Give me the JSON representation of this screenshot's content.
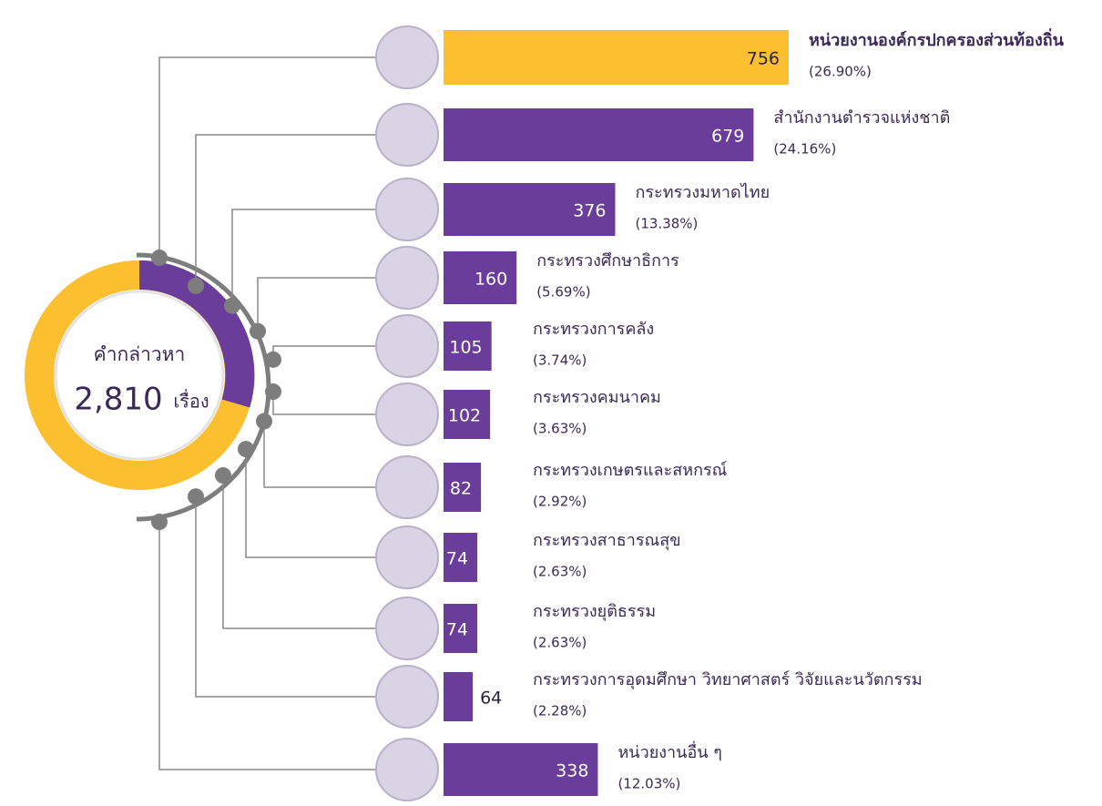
{
  "chart_data": {
    "type": "bar",
    "orientation": "horizontal",
    "center_label": "คำกล่าวหา",
    "total": {
      "value": 2810,
      "label": "2,810"
    },
    "total_unit": "เรื่อง",
    "categories": [
      "หน่วยงานองค์กรปกครองส่วนท้องถิ่น",
      "สำนักงานตำรวจแห่งชาติ",
      "กระทรวงมหาดไทย",
      "กระทรวงศึกษาธิการ",
      "กระทรวงการคลัง",
      "กระทรวงคมนาคม",
      "กระทรวงเกษตรและสหกรณ์",
      "กระทรวงสาธารณสุข",
      "กระทรวงยุติธรรม",
      "กระทรวงการอุดมศึกษา วิทยาศาสตร์ วิจัยและนวัตกรรม",
      "หน่วยงานอื่น ๆ"
    ],
    "values": [
      756,
      679,
      376,
      160,
      105,
      102,
      82,
      74,
      74,
      64,
      338
    ],
    "share_labels": [
      "(26.90%)",
      "(24.16%)",
      "(13.38%)",
      "(5.69%)",
      "(3.74%)",
      "(3.63%)",
      "(2.92%)",
      "(2.63%)",
      "(2.63%)",
      "(2.28%)",
      "(12.03%)"
    ],
    "colors": [
      "#fbbf2f",
      "#6a3d9a",
      "#6a3d9a",
      "#6a3d9a",
      "#6a3d9a",
      "#6a3d9a",
      "#6a3d9a",
      "#6a3d9a",
      "#6a3d9a",
      "#6a3d9a",
      "#6a3d9a"
    ]
  }
}
